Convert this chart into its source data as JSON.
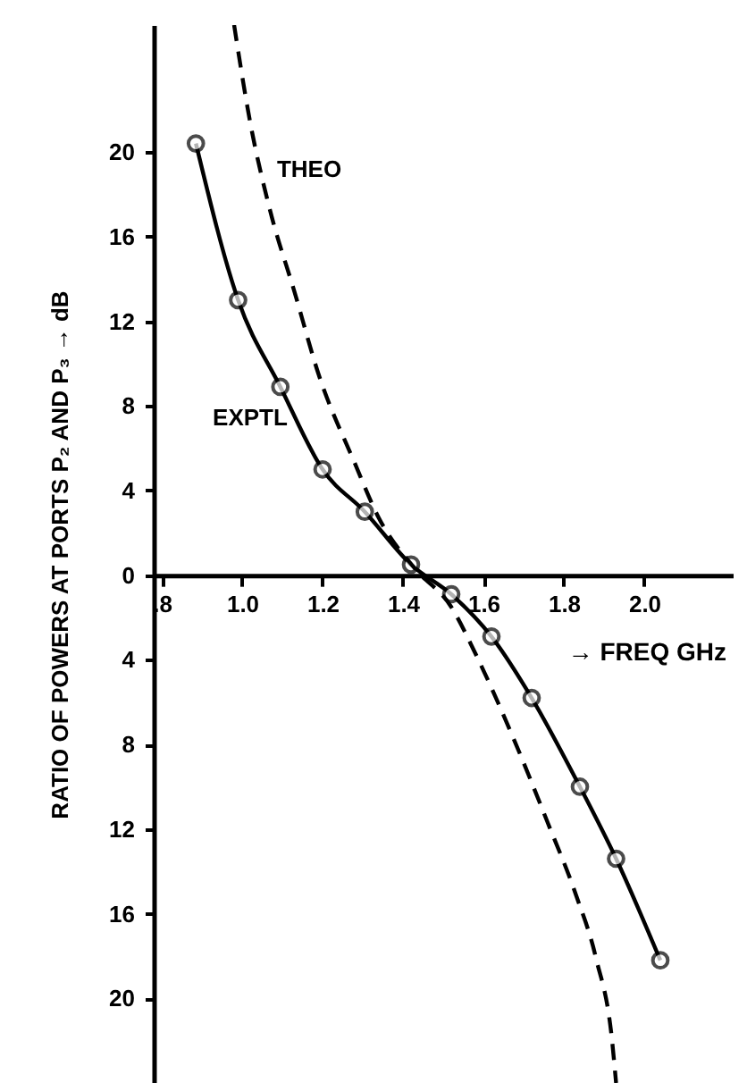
{
  "chart_data": {
    "type": "line",
    "xlabel": "→ FREQ GHz",
    "ylabel": "RATIO OF POWERS AT PORTS P₂ AND P₃ → dB",
    "xlim": [
      0.78,
      2.22
    ],
    "ylim": [
      -24,
      26
    ],
    "xticks": [
      {
        "value": 0.8,
        "label": ".8"
      },
      {
        "value": 1.0,
        "label": "1.0"
      },
      1.2,
      1.4,
      1.6,
      1.8,
      {
        "value": 2.0,
        "label": "2.0"
      }
    ],
    "yticks": [
      {
        "value": -20,
        "label": "20"
      },
      {
        "value": -16,
        "label": "16"
      },
      {
        "value": -12,
        "label": "12"
      },
      {
        "value": -8,
        "label": "8"
      },
      {
        "value": -4,
        "label": "4"
      },
      0,
      4,
      8,
      12,
      16,
      20
    ],
    "series": [
      {
        "color": "#000000",
        "line_style": "solid",
        "marker": "circle",
        "x": [
          0.885,
          0.99,
          1.095,
          1.2,
          1.305,
          1.42,
          1.52,
          1.62,
          1.72,
          1.84,
          1.93,
          2.04
        ],
        "values": [
          20.4,
          13.0,
          8.9,
          5.0,
          3.0,
          0.5,
          -0.9,
          -2.9,
          -5.8,
          -10.0,
          -13.4,
          -18.2
        ]
      },
      {
        "color": "#000000",
        "line_style": "dashed",
        "marker": "none",
        "x": [
          0.98,
          1.02,
          1.07,
          1.13,
          1.19,
          1.28,
          1.34,
          1.43,
          1.52,
          1.58,
          1.67,
          1.76,
          1.83,
          1.88,
          1.92,
          1.93
        ],
        "values": [
          26,
          21.4,
          17.2,
          13.4,
          9.5,
          5.3,
          2.7,
          0.3,
          -1.5,
          -3.7,
          -7.5,
          -11.7,
          -15.1,
          -18.1,
          -22,
          -24
        ]
      }
    ],
    "annotations": [
      "THEO",
      "EXPTL"
    ],
    "grid": false
  }
}
